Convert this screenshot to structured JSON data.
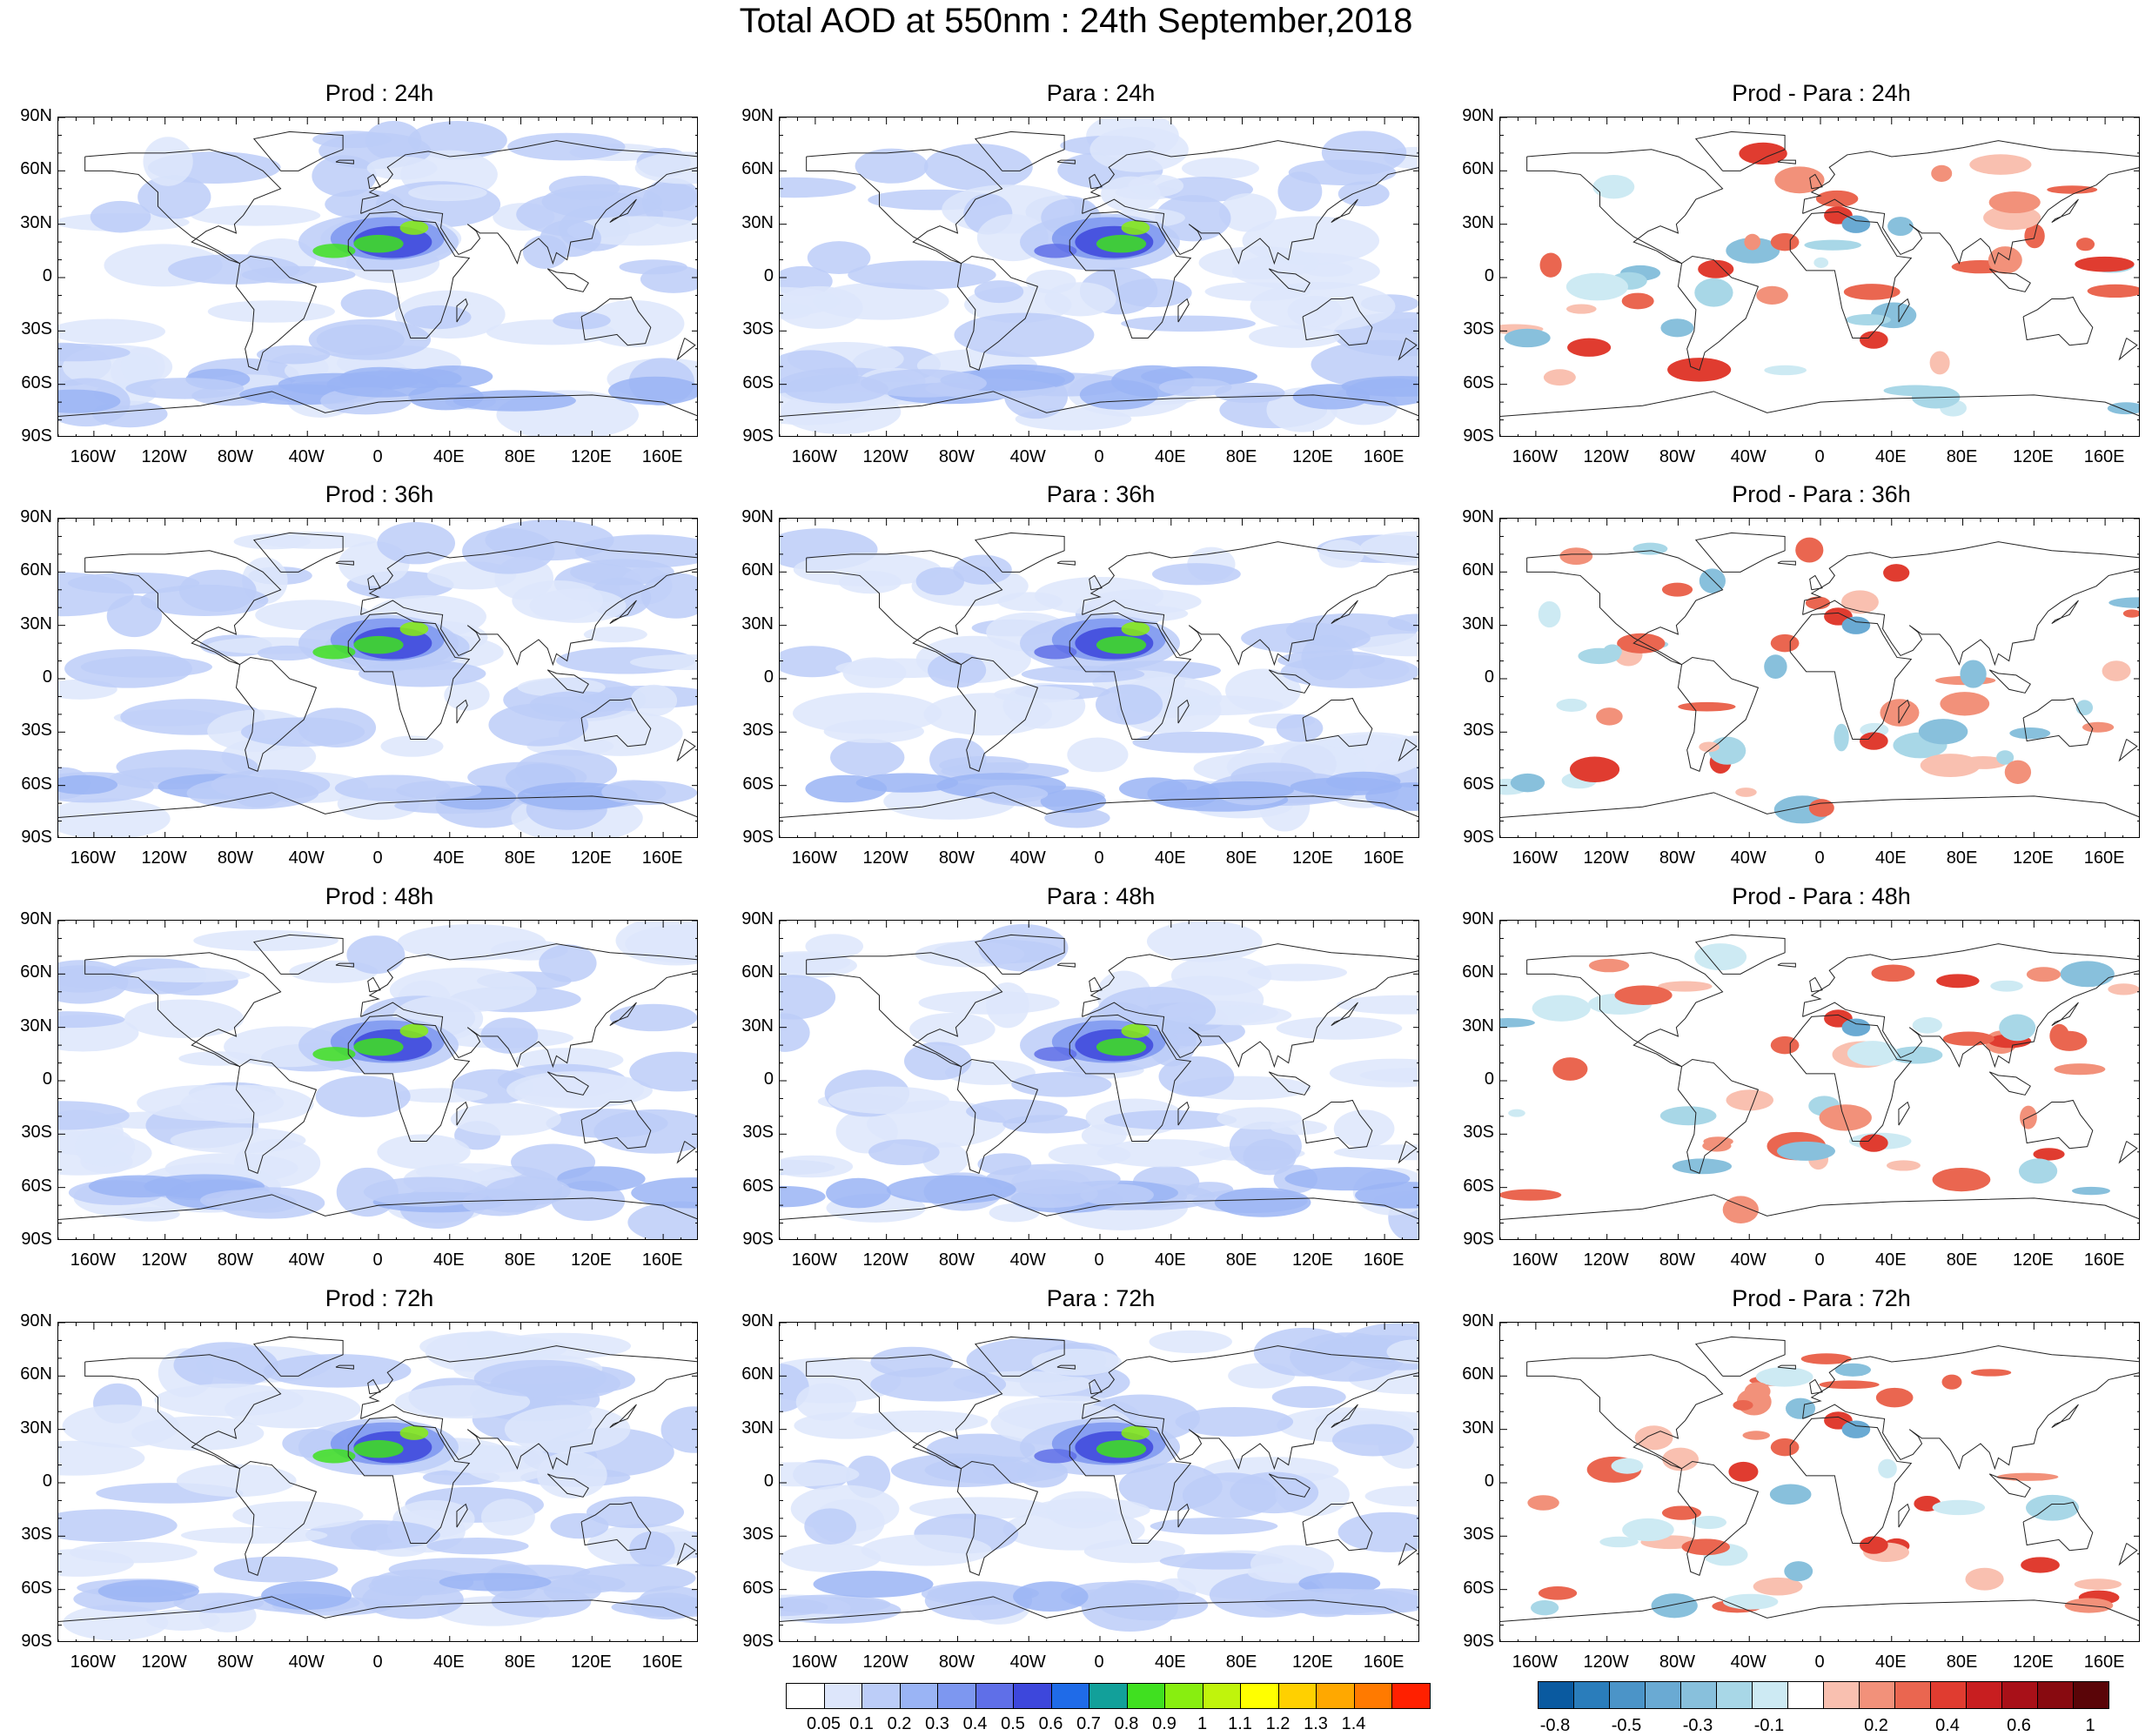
{
  "title": "Total AOD at 550nm : 24th September,2018",
  "panels": [
    {
      "title": "Prod : 24h",
      "kind": "aod"
    },
    {
      "title": "Para : 24h",
      "kind": "aod"
    },
    {
      "title": "Prod - Para : 24h",
      "kind": "diff"
    },
    {
      "title": "Prod : 36h",
      "kind": "aod"
    },
    {
      "title": "Para : 36h",
      "kind": "aod"
    },
    {
      "title": "Prod - Para : 36h",
      "kind": "diff"
    },
    {
      "title": "Prod : 48h",
      "kind": "aod"
    },
    {
      "title": "Para : 48h",
      "kind": "aod"
    },
    {
      "title": "Prod - Para : 48h",
      "kind": "diff"
    },
    {
      "title": "Prod : 72h",
      "kind": "aod"
    },
    {
      "title": "Para : 72h",
      "kind": "aod"
    },
    {
      "title": "Prod - Para : 72h",
      "kind": "diff"
    }
  ],
  "lat_labels": [
    "90N",
    "60N",
    "30N",
    "0",
    "30S",
    "60S",
    "90S"
  ],
  "lon_labels": [
    "160W",
    "120W",
    "80W",
    "40W",
    "0",
    "40E",
    "80E",
    "120E",
    "160E"
  ],
  "aod_colorbar": {
    "colors": [
      "#ffffff",
      "#dde6fb",
      "#bccdf8",
      "#9ab4f5",
      "#7d97f0",
      "#5f6fe8",
      "#3d47dc",
      "#1f6be8",
      "#12a09a",
      "#40e020",
      "#88ee10",
      "#c0f40c",
      "#ffff00",
      "#ffd000",
      "#ffa800",
      "#ff7a00",
      "#ff2000"
    ],
    "labels": [
      "0.05",
      "0.1",
      "0.2",
      "0.3",
      "0.4",
      "0.5",
      "0.6",
      "0.7",
      "0.8",
      "0.9",
      "1",
      "1.1",
      "1.2",
      "1.3",
      "1.4"
    ]
  },
  "diff_colorbar": {
    "colors": [
      "#0a5aa0",
      "#2a7dbb",
      "#4b94c8",
      "#6aaad3",
      "#88c0dc",
      "#a8d7e7",
      "#cdeaf3",
      "#ffffff",
      "#f9c0b0",
      "#f2917a",
      "#ea6650",
      "#e03c30",
      "#c81e20",
      "#a81018",
      "#880a10",
      "#5a0508"
    ],
    "labels": [
      "-0.8",
      "-0.5",
      "-0.3",
      "-0.1",
      "0.2",
      "0.4",
      "0.6",
      "1"
    ]
  }
}
